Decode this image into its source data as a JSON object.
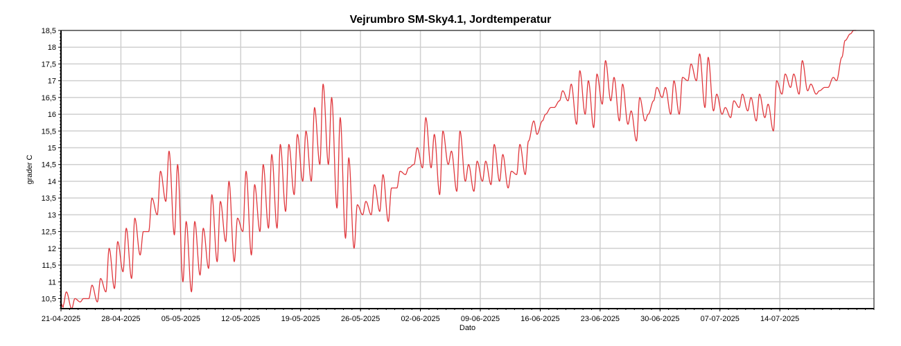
{
  "chart_data": {
    "type": "line",
    "title": "Vejrumbro SM-Sky4.1, Jordtemperatur",
    "xlabel": "Dato",
    "ylabel": "grader C",
    "ylim": [
      10.2,
      18.5
    ],
    "xlim": [
      "21-04-2025",
      "25-07-2025"
    ],
    "grid": true,
    "line_color": "#e0373c",
    "ytick_values": [
      10.5,
      11,
      11.5,
      12,
      12.5,
      13,
      13.5,
      14,
      14.5,
      15,
      15.5,
      16,
      16.5,
      17,
      17.5,
      18,
      18.5
    ],
    "yticks": [
      "10,5",
      "11",
      "11,5",
      "12",
      "12,5",
      "13",
      "13,5",
      "14",
      "14,5",
      "15",
      "15,5",
      "16",
      "16,5",
      "17",
      "17,5",
      "18",
      "18,5"
    ],
    "xticks": [
      "21-04-2025",
      "28-04-2025",
      "05-05-2025",
      "12-05-2025",
      "19-05-2025",
      "26-05-2025",
      "02-06-2025",
      "09-06-2025",
      "16-06-2025",
      "23-06-2025",
      "30-06-2025",
      "07-07-2025",
      "14-07-2025"
    ],
    "series": [
      {
        "daily_max": [
          10.7,
          10.5,
          10.5,
          10.9,
          11.1,
          12.0,
          12.2,
          12.6,
          12.9,
          12.5,
          13.5,
          14.3,
          14.9,
          14.5,
          12.8,
          12.8,
          12.6,
          13.6,
          13.4,
          14.0,
          12.9,
          14.3,
          13.9,
          14.5,
          14.8,
          15.1,
          15.1,
          15.4,
          15.5,
          16.2,
          16.9,
          16.5,
          15.9,
          14.7,
          13.3,
          13.4,
          13.9,
          14.2,
          13.8,
          14.3,
          14.4,
          15.0,
          15.9,
          15.4,
          15.5,
          14.9,
          15.5,
          14.5,
          14.6,
          14.6,
          15.1,
          14.8,
          14.3,
          15.1,
          15.2,
          15.4,
          16.0,
          16.2,
          16.7,
          16.9,
          17.3,
          17.0,
          17.2,
          17.6,
          17.1,
          16.9,
          16.1,
          16.5,
          16.0,
          16.8,
          16.8,
          17.0,
          17.1,
          17.5,
          17.8,
          17.7,
          16.6,
          16.2,
          16.4,
          16.6,
          16.5,
          16.6,
          16.3,
          17.0,
          17.2,
          17.2,
          17.6,
          16.9,
          16.7,
          16.8,
          17.0,
          18.2,
          18.5
        ],
        "daily_min": [
          10.3,
          10.2,
          10.4,
          10.5,
          10.4,
          10.7,
          10.8,
          11.3,
          11.1,
          11.8,
          12.5,
          13.0,
          13.4,
          12.4,
          11.0,
          10.7,
          11.2,
          11.4,
          11.6,
          12.2,
          11.6,
          12.5,
          11.8,
          12.5,
          12.6,
          12.6,
          13.1,
          13.6,
          14.0,
          14.0,
          14.5,
          14.5,
          13.2,
          12.3,
          12.0,
          13.0,
          13.0,
          13.1,
          12.8,
          13.8,
          14.2,
          14.5,
          14.4,
          14.4,
          13.6,
          14.5,
          13.7,
          14.0,
          13.7,
          14.0,
          13.9,
          14.0,
          13.8,
          14.2,
          14.2,
          15.8,
          15.8,
          16.2,
          16.4,
          16.4,
          15.7,
          16.0,
          15.6,
          16.3,
          16.4,
          15.8,
          15.7,
          15.2,
          15.8,
          16.4,
          16.5,
          16.0,
          16.0,
          17.0,
          17.0,
          16.2,
          16.1,
          16.0,
          15.9,
          16.2,
          16.1,
          15.8,
          15.9,
          15.5,
          16.6,
          16.8,
          16.6,
          16.7,
          16.6,
          16.8,
          17.1,
          17.7,
          18.4
        ]
      }
    ]
  }
}
